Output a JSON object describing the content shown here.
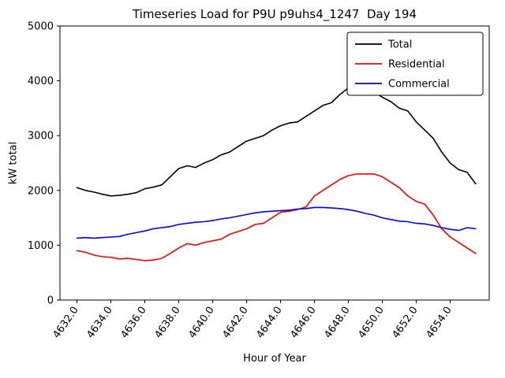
{
  "chart_data": {
    "type": "line",
    "title": "Timeseries Load for P9U p9uhs4_1247  Day 194",
    "xlabel": "Hour of Year",
    "ylabel": "kW total",
    "xlim": [
      4631.0,
      4656.3
    ],
    "ylim": [
      0,
      5000
    ],
    "yticks": [
      0,
      1000,
      2000,
      3000,
      4000,
      5000
    ],
    "xticks": [
      "4632.0",
      "4634.0",
      "4636.0",
      "4638.0",
      "4640.0",
      "4642.0",
      "4644.0",
      "4646.0",
      "4648.0",
      "4650.0",
      "4652.0",
      "4654.0"
    ],
    "grid": false,
    "legend_position": "upper right",
    "x": [
      4632.0,
      4632.5,
      4633.0,
      4633.5,
      4634.0,
      4634.5,
      4635.0,
      4635.5,
      4636.0,
      4636.5,
      4637.0,
      4637.5,
      4638.0,
      4638.5,
      4639.0,
      4639.5,
      4640.0,
      4640.5,
      4641.0,
      4641.5,
      4642.0,
      4642.5,
      4643.0,
      4643.5,
      4644.0,
      4644.5,
      4645.0,
      4645.5,
      4646.0,
      4646.5,
      4647.0,
      4647.5,
      4648.0,
      4648.5,
      4649.0,
      4649.5,
      4650.0,
      4650.5,
      4651.0,
      4651.5,
      4652.0,
      4652.5,
      4653.0,
      4653.5,
      4654.0,
      4654.5,
      4655.0,
      4655.5
    ],
    "series": [
      {
        "name": "Total",
        "color": "#000000",
        "values": [
          2050,
          2000,
          1970,
          1930,
          1900,
          1910,
          1930,
          1960,
          2030,
          2060,
          2100,
          2250,
          2400,
          2450,
          2420,
          2500,
          2560,
          2650,
          2700,
          2800,
          2900,
          2950,
          3000,
          3100,
          3180,
          3230,
          3250,
          3350,
          3450,
          3550,
          3600,
          3750,
          3870,
          3900,
          3880,
          3800,
          3700,
          3620,
          3500,
          3450,
          3250,
          3100,
          2950,
          2700,
          2500,
          2380,
          2330,
          2120
        ]
      },
      {
        "name": "Residential",
        "color": "#ff0000",
        "values": [
          900,
          870,
          820,
          790,
          780,
          750,
          760,
          740,
          720,
          730,
          760,
          850,
          950,
          1030,
          1000,
          1050,
          1080,
          1110,
          1200,
          1250,
          1300,
          1380,
          1400,
          1500,
          1600,
          1620,
          1650,
          1700,
          1900,
          2000,
          2100,
          2200,
          2270,
          2300,
          2300,
          2300,
          2250,
          2150,
          2050,
          1900,
          1800,
          1750,
          1550,
          1300,
          1150,
          1050,
          950,
          850
        ]
      },
      {
        "name": "Commercial",
        "color": "#0000ff",
        "values": [
          1130,
          1140,
          1130,
          1140,
          1150,
          1160,
          1200,
          1230,
          1260,
          1300,
          1320,
          1340,
          1380,
          1400,
          1420,
          1430,
          1450,
          1480,
          1500,
          1530,
          1560,
          1590,
          1610,
          1620,
          1630,
          1640,
          1660,
          1670,
          1690,
          1690,
          1680,
          1670,
          1650,
          1620,
          1580,
          1550,
          1500,
          1470,
          1440,
          1430,
          1400,
          1390,
          1360,
          1320,
          1290,
          1270,
          1320,
          1300
        ]
      }
    ]
  }
}
